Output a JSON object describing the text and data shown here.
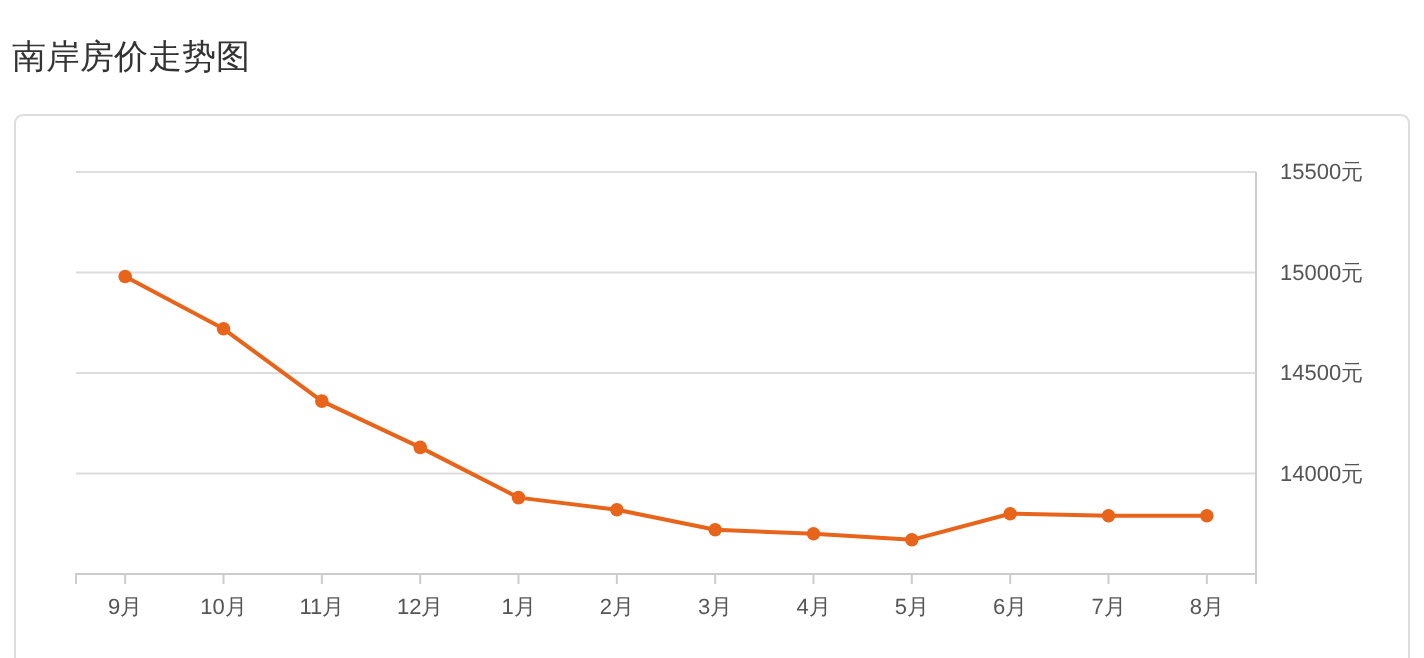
{
  "chart_data": {
    "type": "line",
    "title": "南岸房价走势图",
    "categories": [
      "9月",
      "10月",
      "11月",
      "12月",
      "1月",
      "2月",
      "3月",
      "4月",
      "5月",
      "6月",
      "7月",
      "8月"
    ],
    "series": [
      {
        "color": "#e8641b",
        "values": [
          14980,
          14720,
          14360,
          14130,
          13880,
          13820,
          13720,
          13700,
          13670,
          13800,
          13790,
          13790
        ]
      }
    ],
    "ylim": [
      13500,
      15500
    ],
    "yticks": [
      {
        "value": 14000,
        "label": "14000元"
      },
      {
        "value": 14500,
        "label": "14500元"
      },
      {
        "value": 15000,
        "label": "15000元"
      },
      {
        "value": 15500,
        "label": "15500元"
      }
    ],
    "grid": "y",
    "marker": "circle",
    "line_style": "solid"
  }
}
